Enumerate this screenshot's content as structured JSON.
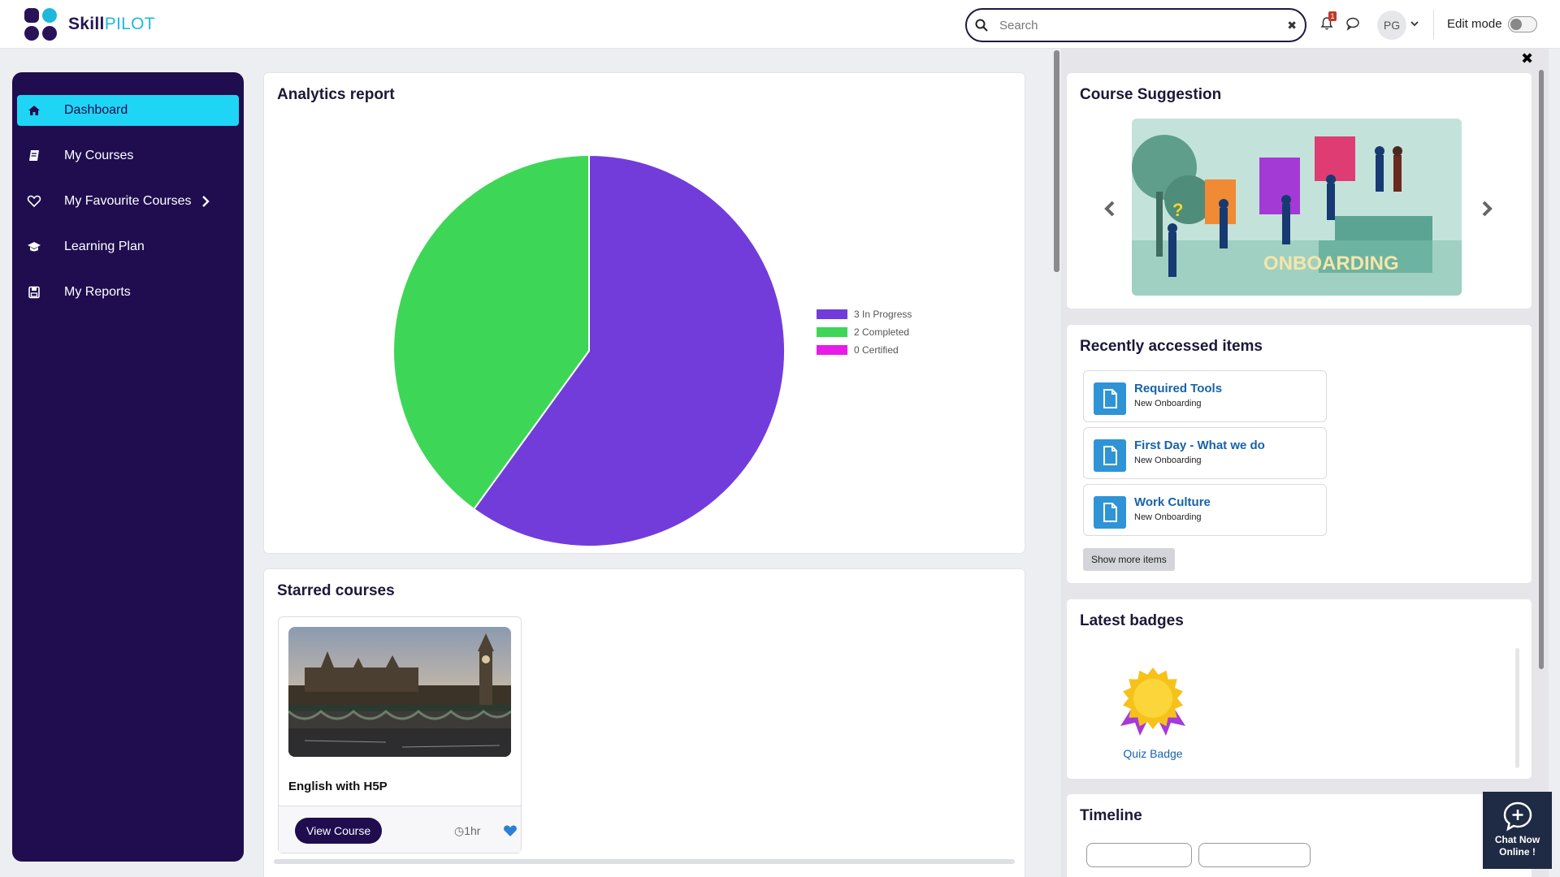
{
  "brand": {
    "name_part1": "Skill",
    "name_part2": "PILOT",
    "accent": "#1fb8dd",
    "primary": "#1f0d4f"
  },
  "header": {
    "search_placeholder": "Search",
    "notifications_count": "1",
    "user_initials": "PG",
    "edit_mode_label": "Edit mode"
  },
  "sidebar": {
    "items": [
      {
        "label": "Dashboard",
        "icon": "home-icon",
        "active": true
      },
      {
        "label": "My Courses",
        "icon": "book-icon"
      },
      {
        "label": "My Favourite Courses",
        "icon": "heart-icon"
      },
      {
        "label": "Learning Plan",
        "icon": "graduation-cap-icon"
      },
      {
        "label": "My Reports",
        "icon": "save-icon"
      }
    ]
  },
  "analytics": {
    "title": "Analytics report",
    "chart_data": {
      "type": "pie",
      "categories": [
        "In Progress",
        "Completed",
        "Certified"
      ],
      "values": [
        3,
        2,
        0
      ],
      "legend": [
        "3 In Progress",
        "2 Completed",
        "0 Certified"
      ],
      "colors": [
        "#723cdb",
        "#3ed657",
        "#e81ce8"
      ],
      "legend_position": "right"
    }
  },
  "starred": {
    "title": "Starred courses",
    "course": {
      "title": "English with H5P",
      "button": "View Course",
      "duration": "1hr"
    }
  },
  "suggestion": {
    "title": "Course Suggestion",
    "banner_text": "ONBOARDING"
  },
  "recent": {
    "title": "Recently accessed items",
    "items": [
      {
        "title": "Required Tools",
        "subtitle": "New Onboarding"
      },
      {
        "title": "First Day - What we do",
        "subtitle": "New Onboarding"
      },
      {
        "title": "Work Culture",
        "subtitle": "New Onboarding"
      }
    ],
    "show_more": "Show more items"
  },
  "badges": {
    "title": "Latest badges",
    "badge_name": "Quiz Badge"
  },
  "timeline": {
    "title": "Timeline"
  },
  "chat": {
    "line1": "Chat Now",
    "line2": "Online !"
  }
}
